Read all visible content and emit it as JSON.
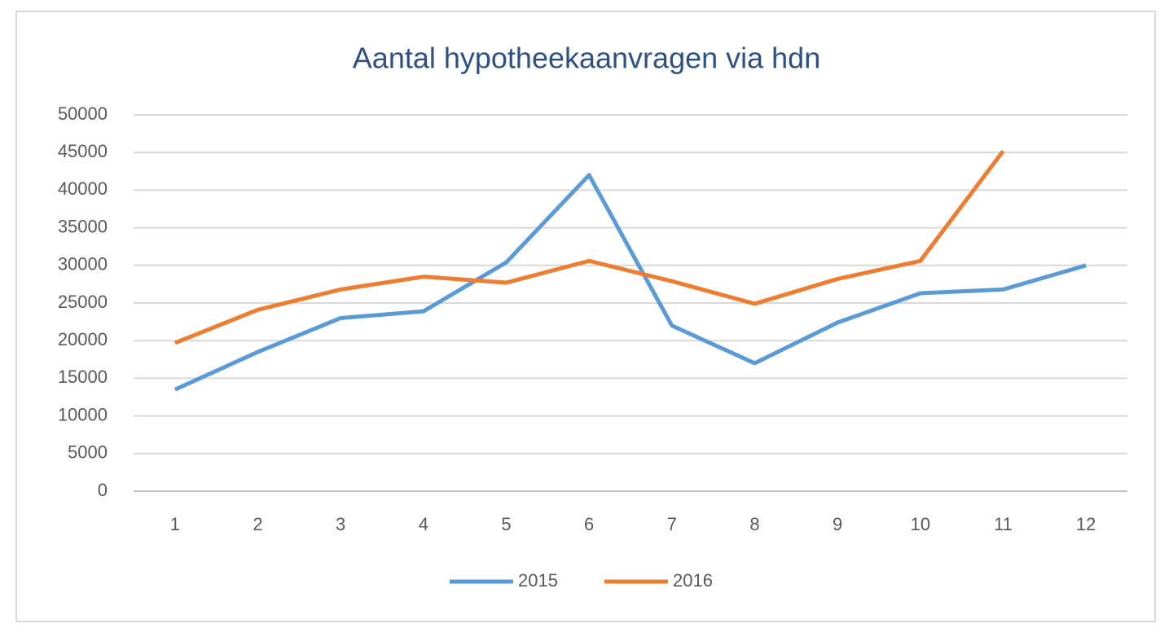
{
  "chart_data": {
    "type": "line",
    "title": "Aantal hypotheekaanvragen  via hdn",
    "categories": [
      "1",
      "2",
      "3",
      "4",
      "5",
      "6",
      "7",
      "8",
      "9",
      "10",
      "11",
      "12"
    ],
    "series": [
      {
        "name": "2015",
        "color": "#5b9bd5",
        "values": [
          13500,
          18500,
          23000,
          23900,
          30400,
          42000,
          22000,
          17000,
          22400,
          26300,
          26800,
          30000
        ]
      },
      {
        "name": "2016",
        "color": "#ed7d31",
        "values": [
          19700,
          24100,
          26800,
          28500,
          27700,
          30600,
          27900,
          24900,
          28200,
          30600,
          45200,
          null
        ]
      }
    ],
    "ylim": [
      0,
      50000
    ],
    "yticks": [
      0,
      5000,
      10000,
      15000,
      20000,
      25000,
      30000,
      35000,
      40000,
      45000,
      50000
    ],
    "grid": true,
    "legend": "bottom"
  }
}
